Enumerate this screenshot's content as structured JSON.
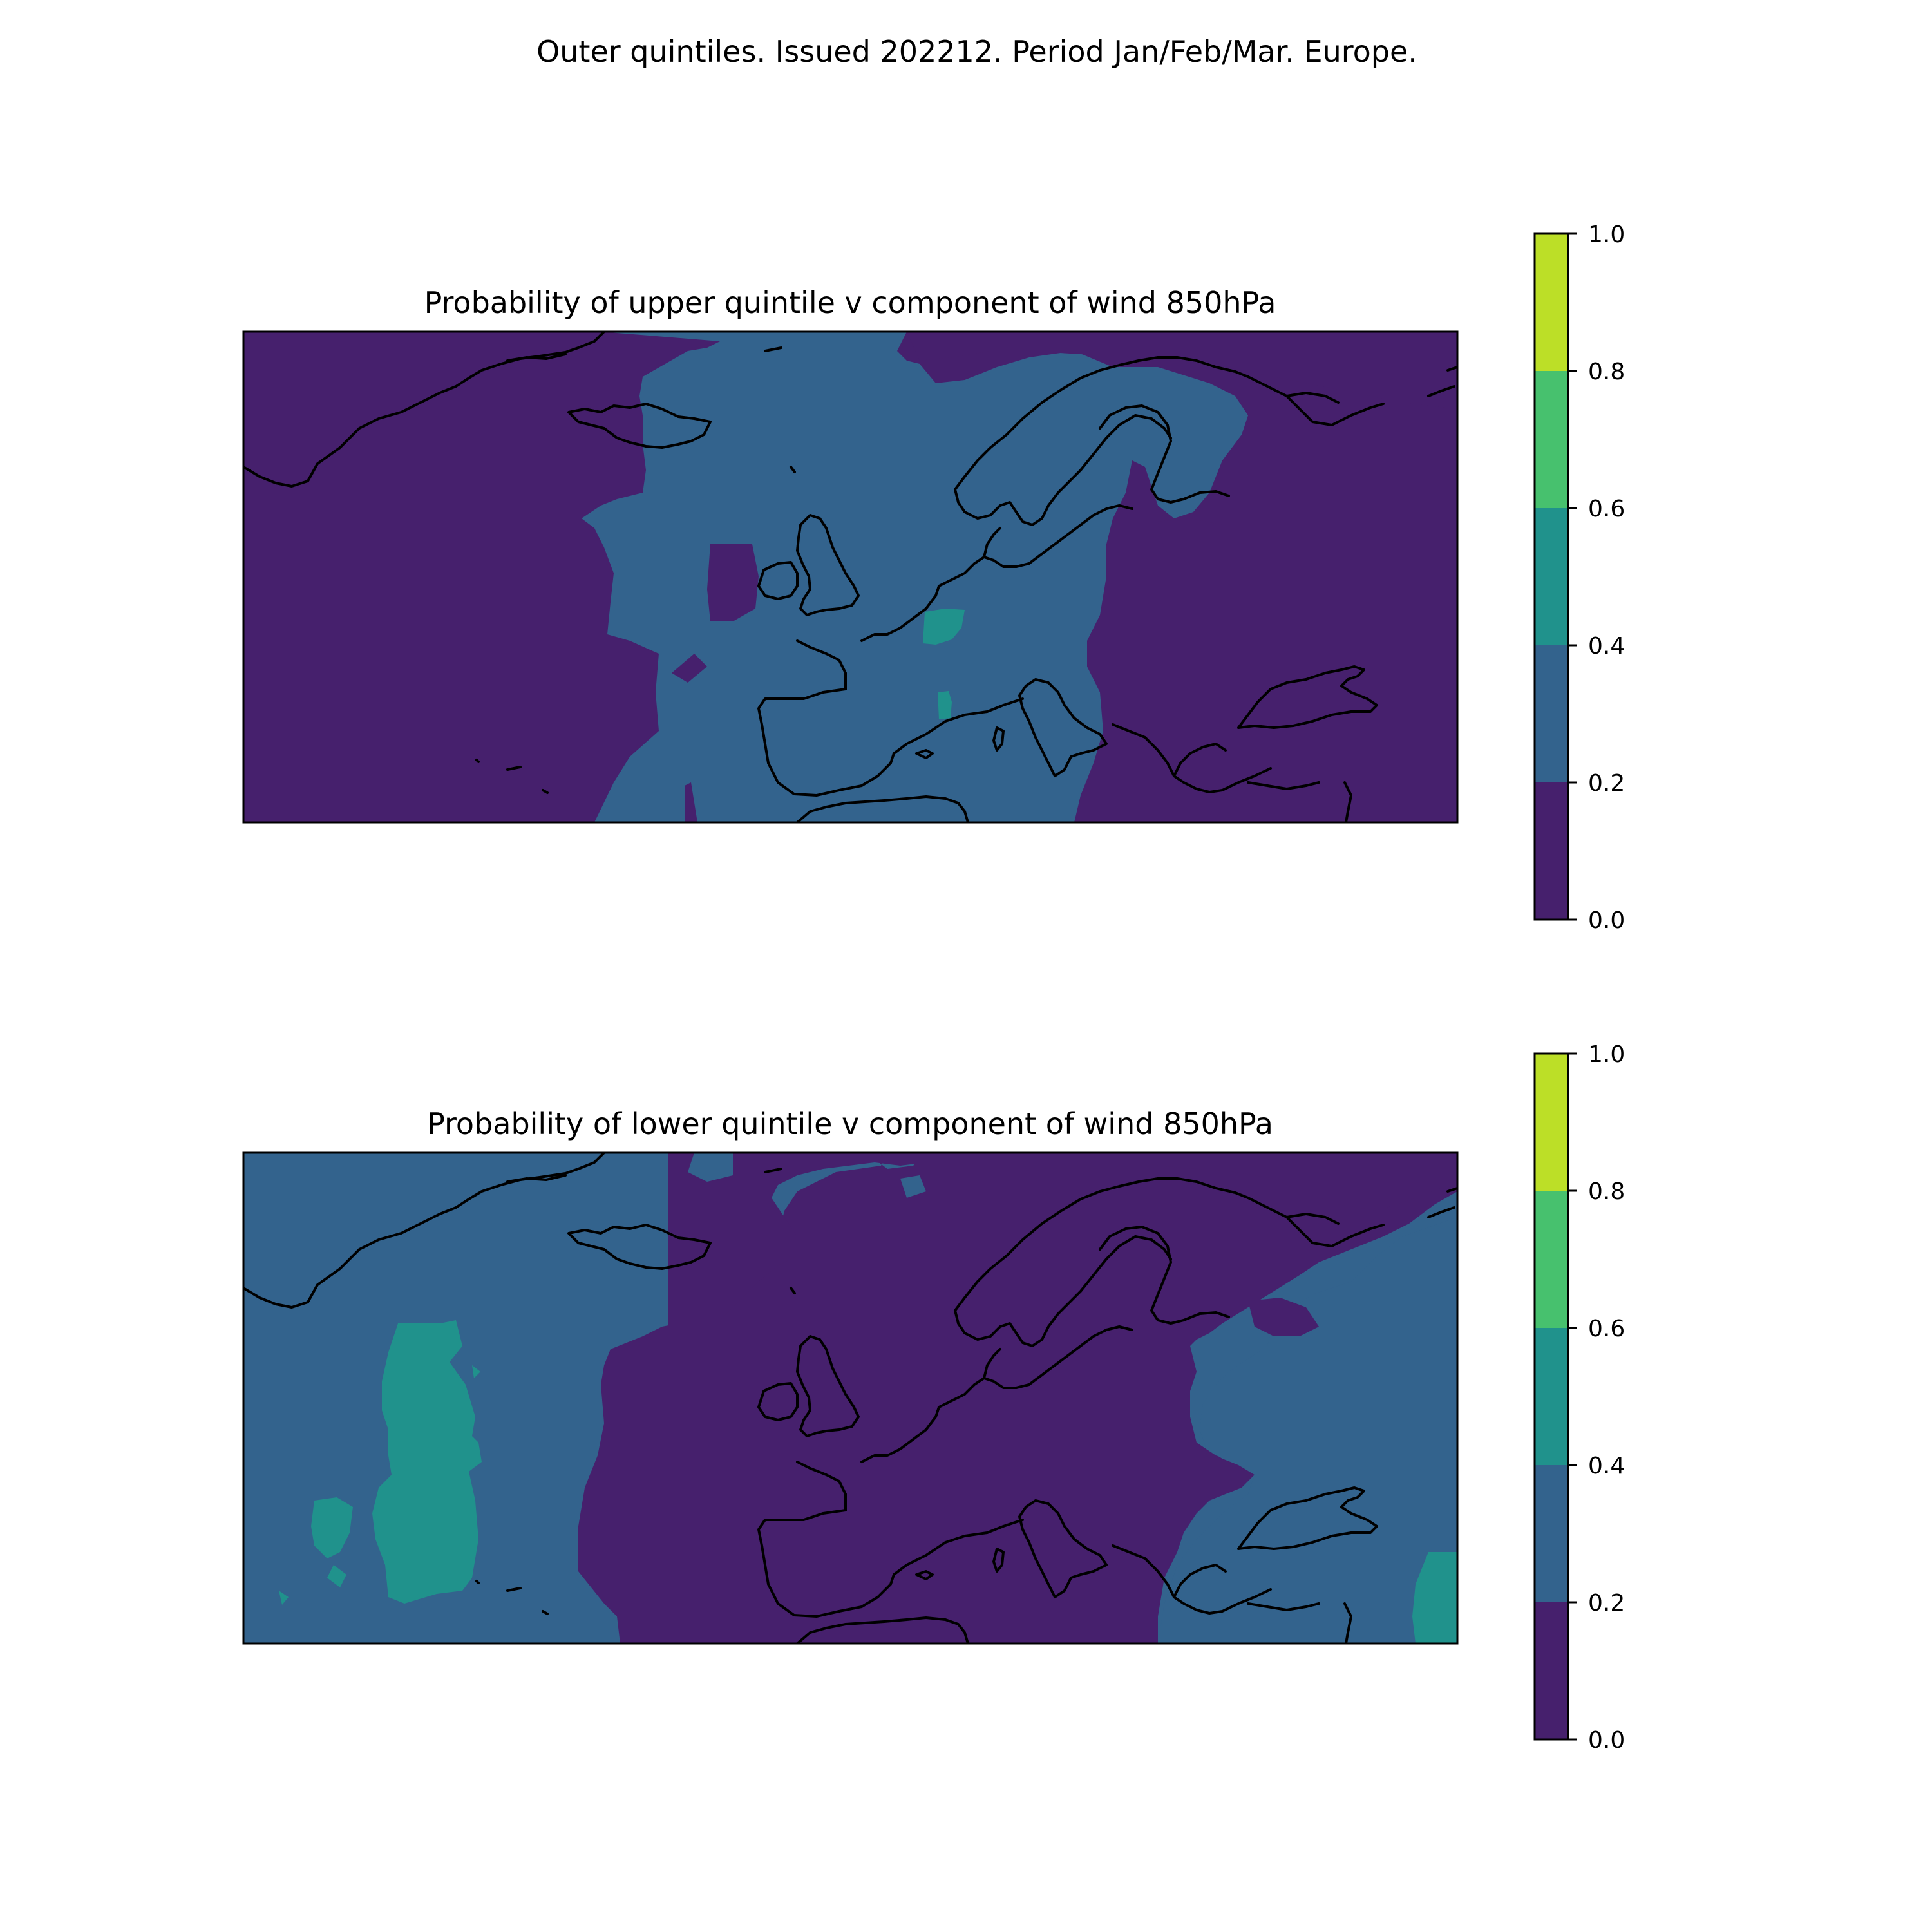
{
  "figure": {
    "suptitle": "Outer quintiles. Issued 202212. Period Jan/Feb/Mar. Europe."
  },
  "colormap": {
    "name": "viridis",
    "levels": [
      0.0,
      0.2,
      0.4,
      0.6,
      0.8,
      1.0
    ],
    "colors": [
      "#46206d",
      "#33638d",
      "#20928c",
      "#47c16e",
      "#bcdf27"
    ],
    "tick_labels": [
      "0.0",
      "0.2",
      "0.4",
      "0.6",
      "0.8",
      "1.0"
    ]
  },
  "panels": [
    {
      "title": "Probability of upper quintile v component of wind 850hPa",
      "map": {
        "background_level": "0.0-0.2",
        "regions": [
          {
            "name": "central-europe-band",
            "level": "0.2-0.4"
          },
          {
            "name": "bay-of-biscay-spot",
            "level": "0.4-0.6"
          },
          {
            "name": "gulf-of-lion-spot",
            "level": "0.4-0.6"
          }
        ]
      },
      "colorbar": {
        "ticks": [
          "0.0",
          "0.2",
          "0.4",
          "0.6",
          "0.8",
          "1.0"
        ]
      }
    },
    {
      "title": "Probability of lower quintile v component of wind 850hPa",
      "map": {
        "background_level": "0.2-0.4",
        "regions": [
          {
            "name": "europe-core",
            "level": "0.0-0.2"
          },
          {
            "name": "mid-atlantic-patch",
            "level": "0.4-0.6"
          },
          {
            "name": "caspian-east-patch",
            "level": "0.4-0.6"
          }
        ]
      },
      "colorbar": {
        "ticks": [
          "0.0",
          "0.2",
          "0.4",
          "0.6",
          "0.8",
          "1.0"
        ]
      }
    }
  ]
}
